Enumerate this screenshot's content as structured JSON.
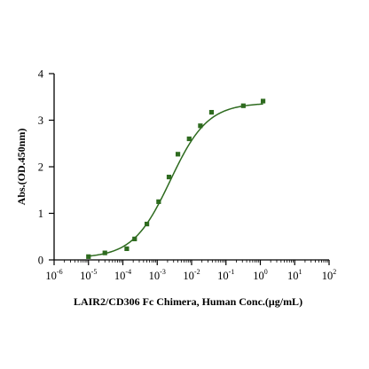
{
  "chart_data": {
    "type": "scatter",
    "xlabel": "LAIR2/CD306 Fc Chimera, Human Conc.(μg/mL)",
    "ylabel": "Abs.(OD.450nm)",
    "x_scale": "log",
    "xlim": [
      1e-06,
      100
    ],
    "ylim": [
      0,
      4
    ],
    "x_ticks": [
      {
        "base": "10",
        "exp": "-6",
        "value": 1e-06
      },
      {
        "base": "10",
        "exp": "-5",
        "value": 1e-05
      },
      {
        "base": "10",
        "exp": "-4",
        "value": 0.0001
      },
      {
        "base": "10",
        "exp": "-3",
        "value": 0.001
      },
      {
        "base": "10",
        "exp": "-2",
        "value": 0.01
      },
      {
        "base": "10",
        "exp": "-1",
        "value": 0.1
      },
      {
        "base": "10",
        "exp": "0",
        "value": 1
      },
      {
        "base": "10",
        "exp": "1",
        "value": 10
      },
      {
        "base": "10",
        "exp": "2",
        "value": 100
      }
    ],
    "y_ticks": [
      "0",
      "1",
      "2",
      "3",
      "4"
    ],
    "grid": false,
    "legend": "none",
    "color": "#2e6b1f",
    "points": [
      {
        "x": 1e-05,
        "y": 0.07
      },
      {
        "x": 3e-05,
        "y": 0.15
      },
      {
        "x": 0.00013,
        "y": 0.24
      },
      {
        "x": 0.00022,
        "y": 0.45
      },
      {
        "x": 0.0005,
        "y": 0.77
      },
      {
        "x": 0.0011,
        "y": 1.25
      },
      {
        "x": 0.0022,
        "y": 1.78
      },
      {
        "x": 0.004,
        "y": 2.27
      },
      {
        "x": 0.0085,
        "y": 2.6
      },
      {
        "x": 0.018,
        "y": 2.88
      },
      {
        "x": 0.038,
        "y": 3.17
      },
      {
        "x": 0.32,
        "y": 3.31
      },
      {
        "x": 1.2,
        "y": 3.41
      }
    ],
    "fit": {
      "model": "4PL",
      "bottom": 0.04,
      "top": 3.37,
      "ec50": 0.0024,
      "hill": 0.8
    }
  }
}
